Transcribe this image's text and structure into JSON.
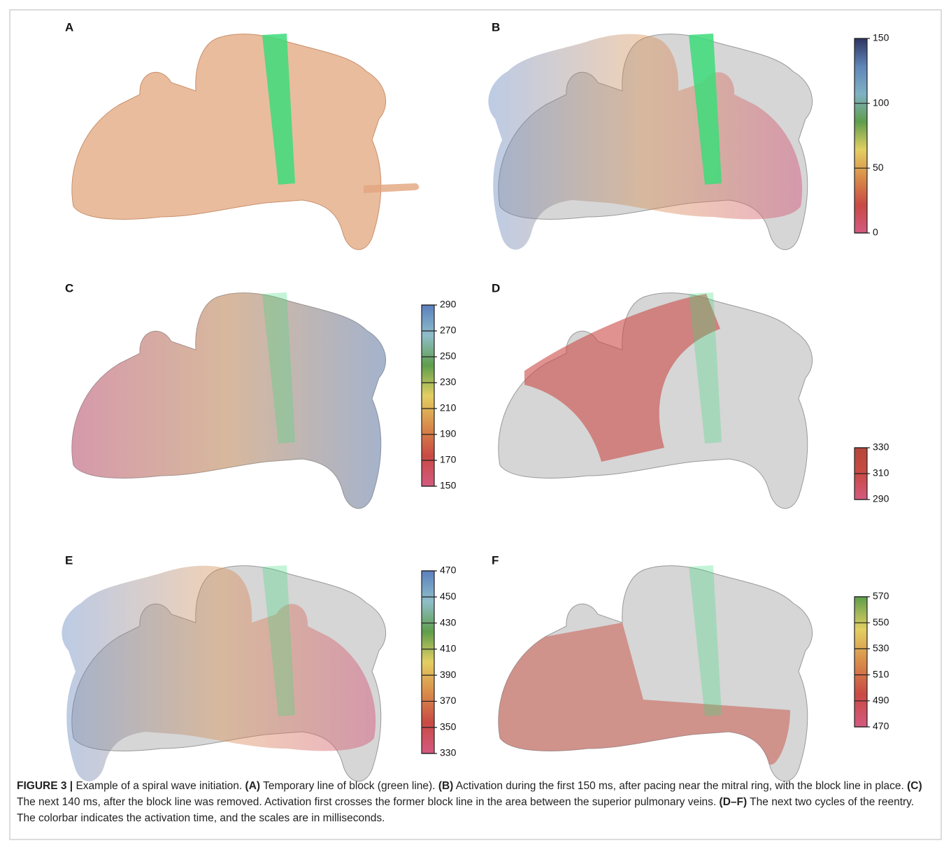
{
  "panels": [
    {
      "label": "A"
    },
    {
      "label": "B",
      "colorbar": {
        "ticks": [
          150,
          100,
          50,
          0
        ],
        "lim": [
          0,
          150
        ],
        "colors": [
          "#d45a80",
          "#c94a44",
          "#d98c4a",
          "#e3cf62",
          "#5f9e4c",
          "#7fb2c4",
          "#5f85b8",
          "#2e3463"
        ]
      }
    },
    {
      "label": "C",
      "colorbar": {
        "ticks": [
          290,
          270,
          250,
          230,
          210,
          190,
          170,
          150
        ],
        "lim": [
          150,
          290
        ],
        "colors": [
          "#d45a80",
          "#c94a44",
          "#d98c4a",
          "#e3cf62",
          "#5f9e4c",
          "#8fbdc9",
          "#5a7fbf"
        ]
      }
    },
    {
      "label": "D",
      "colorbar": {
        "ticks": [
          330,
          310,
          290
        ],
        "lim": [
          290,
          330
        ],
        "colors": [
          "#d45a80",
          "#c94a44",
          "#b5473a"
        ]
      }
    },
    {
      "label": "E",
      "colorbar": {
        "ticks": [
          470,
          450,
          430,
          410,
          390,
          370,
          350,
          330
        ],
        "lim": [
          330,
          470
        ],
        "colors": [
          "#d45a80",
          "#c94a44",
          "#d98c4a",
          "#e3cf62",
          "#5f9e4c",
          "#8fbdc9",
          "#5a7fbf"
        ]
      }
    },
    {
      "label": "F",
      "colorbar": {
        "ticks": [
          570,
          550,
          530,
          510,
          490,
          470
        ],
        "lim": [
          470,
          570
        ],
        "colors": [
          "#d45a80",
          "#c94a44",
          "#d98c4a",
          "#e3cf62",
          "#5f9e4c"
        ]
      }
    }
  ],
  "caption": [
    {
      "text": "FIGURE 3 |",
      "bold": true
    },
    {
      "text": " Example of a spiral wave initiation. ",
      "bold": false
    },
    {
      "text": "(A)",
      "bold": true
    },
    {
      "text": " Temporary line of block (green line). ",
      "bold": false
    },
    {
      "text": "(B)",
      "bold": true
    },
    {
      "text": " Activation during the first 150 ms, after pacing near the mitral ring, with the block line in place. ",
      "bold": false
    },
    {
      "text": "(C)",
      "bold": true
    },
    {
      "text": " The next 140 ms, after the block line was removed. Activation first crosses the former block line in the area between the superior pulmonary veins. ",
      "bold": false
    },
    {
      "text": "(D–F)",
      "bold": true
    },
    {
      "text": " The next two cycles of the reentry. The colorbar indicates the activation time, and the scales are in milliseconds.",
      "bold": false
    }
  ]
}
